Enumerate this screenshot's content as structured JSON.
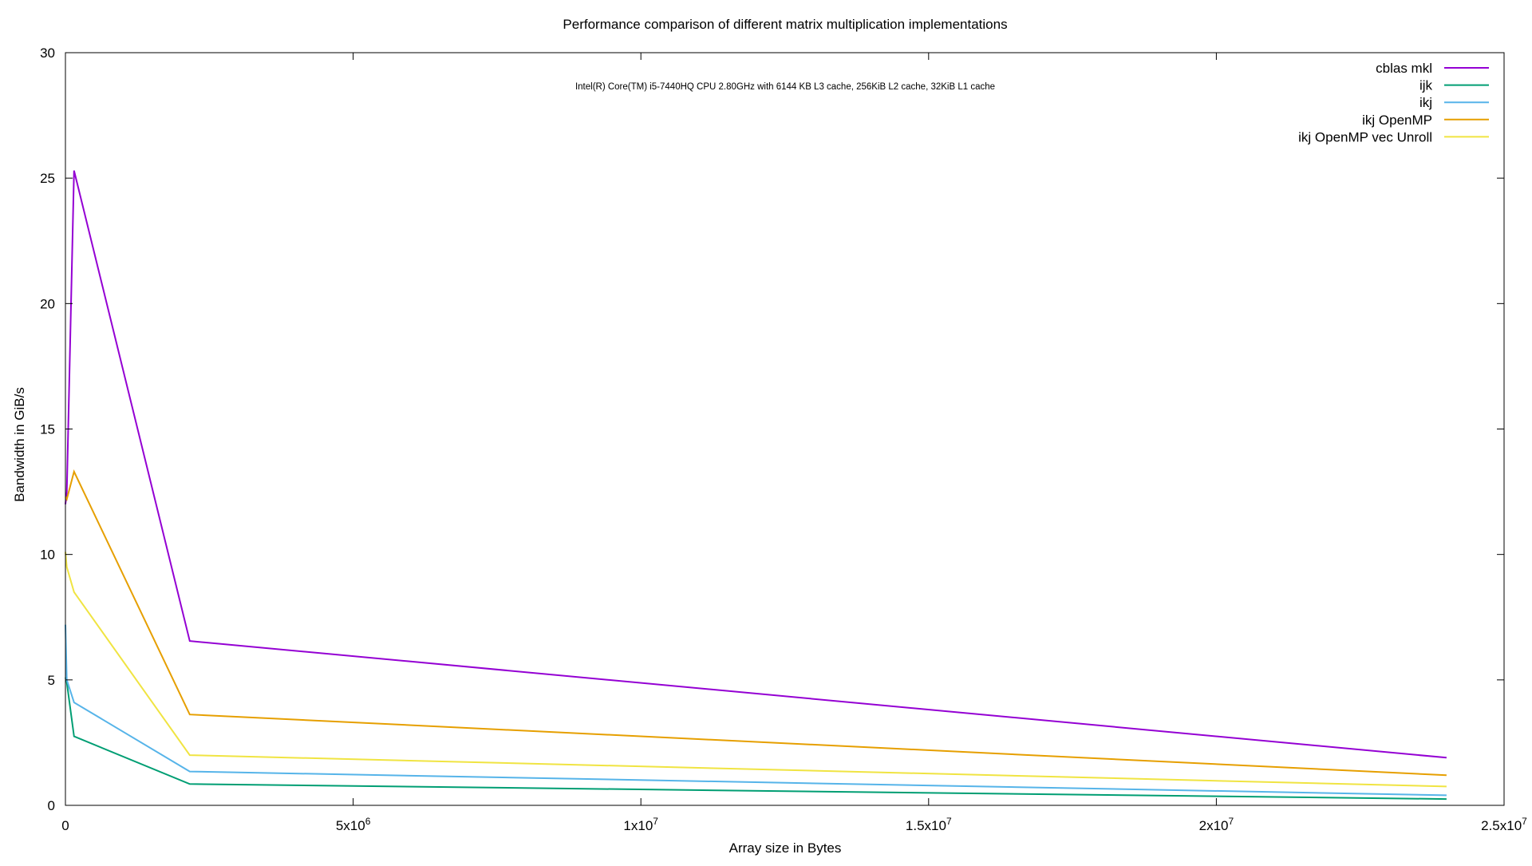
{
  "chart_data": {
    "type": "line",
    "title": "Performance comparison of different matrix multiplication implementations",
    "subtitle": "Intel(R) Core(TM) i5-7440HQ CPU  2.80GHz with  6144 KB L3 cache, 256KiB L2 cache, 32KiB L1 cache",
    "xlabel": "Array size in Bytes",
    "ylabel": "Bandwidth in GiB/s",
    "xlim": [
      0,
      25000000
    ],
    "ylim": [
      0,
      30
    ],
    "x_ticks": [
      {
        "value": 0,
        "label": "0"
      },
      {
        "value": 5000000,
        "label": "5x10",
        "exp": "6"
      },
      {
        "value": 10000000,
        "label": "1x10",
        "exp": "7"
      },
      {
        "value": 15000000,
        "label": "1.5x10",
        "exp": "7"
      },
      {
        "value": 20000000,
        "label": "2x10",
        "exp": "7"
      },
      {
        "value": 25000000,
        "label": "2.5x10",
        "exp": "7"
      }
    ],
    "y_ticks": [
      {
        "value": 0,
        "label": "0"
      },
      {
        "value": 5,
        "label": "5"
      },
      {
        "value": 10,
        "label": "10"
      },
      {
        "value": 15,
        "label": "15"
      },
      {
        "value": 20,
        "label": "20"
      },
      {
        "value": 25,
        "label": "25"
      },
      {
        "value": 30,
        "label": "30"
      }
    ],
    "grid": false,
    "legend_position": "top-right",
    "x": [
      0,
      24000,
      150000,
      2160000,
      24000000
    ],
    "series": [
      {
        "name": "cblas mkl",
        "color": "#9400d3",
        "y": [
          12.0,
          12.5,
          25.3,
          6.55,
          1.9
        ]
      },
      {
        "name": "ijk",
        "color": "#009e73",
        "y": [
          5.1,
          4.9,
          2.75,
          0.85,
          0.25
        ]
      },
      {
        "name": "ikj",
        "color": "#56b4e9",
        "y": [
          7.2,
          5.0,
          4.1,
          1.35,
          0.4
        ]
      },
      {
        "name": "ikj OpenMP",
        "color": "#e69f00",
        "y": [
          12.3,
          12.2,
          13.3,
          3.62,
          1.2
        ]
      },
      {
        "name": "ikj OpenMP  vec  Unroll",
        "color": "#f0e442",
        "y": [
          10.1,
          9.5,
          8.5,
          2.0,
          0.75
        ]
      }
    ]
  }
}
